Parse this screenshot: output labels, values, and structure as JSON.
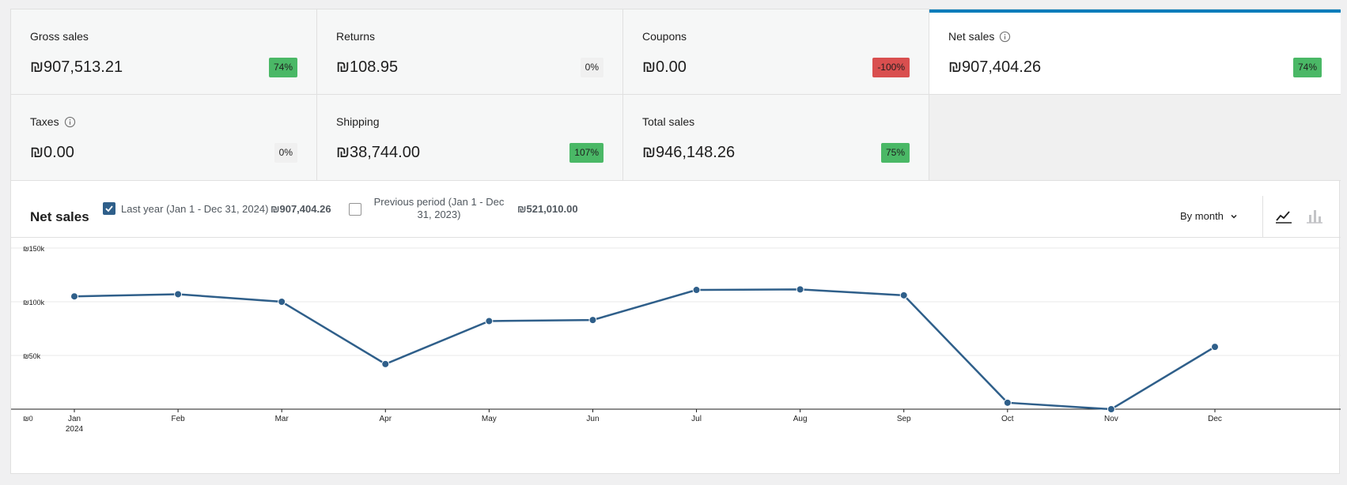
{
  "tiles": [
    {
      "label": "Gross sales",
      "value": "₪907,513.21",
      "change": "74%",
      "status": "green",
      "info": false,
      "active": false
    },
    {
      "label": "Returns",
      "value": "₪108.95",
      "change": "0%",
      "status": "neutral",
      "info": false,
      "active": false
    },
    {
      "label": "Coupons",
      "value": "₪0.00",
      "change": "-100%",
      "status": "red",
      "info": false,
      "active": false
    },
    {
      "label": "Net sales",
      "value": "₪907,404.26",
      "change": "74%",
      "status": "green",
      "info": true,
      "active": true
    },
    {
      "label": "Taxes",
      "value": "₪0.00",
      "change": "0%",
      "status": "neutral",
      "info": true,
      "active": false
    },
    {
      "label": "Shipping",
      "value": "₪38,744.00",
      "change": "107%",
      "status": "green",
      "info": false,
      "active": false
    },
    {
      "label": "Total sales",
      "value": "₪946,148.26",
      "change": "75%",
      "status": "green",
      "info": false,
      "active": false
    }
  ],
  "chart_header": {
    "title": "Net sales",
    "current_period": {
      "label": "Last year (Jan 1 - Dec 31, 2024)",
      "value": "₪907,404.26",
      "checked": true
    },
    "previous_period": {
      "label_line1": "Previous period (Jan 1 - Dec",
      "label_line2": "31, 2023)",
      "value": "₪521,010.00",
      "checked": false
    },
    "interval": "By month",
    "chart_type_icons": [
      "line-chart-icon",
      "bar-chart-icon"
    ]
  },
  "colors": {
    "accent": "#007cba",
    "series": "#2f5f8a",
    "positive": "#4ab866",
    "negative": "#d94f4f"
  },
  "chart_data": {
    "type": "line",
    "categories": [
      "Jan",
      "Feb",
      "Mar",
      "Apr",
      "May",
      "Jun",
      "Jul",
      "Aug",
      "Sep",
      "Oct",
      "Nov",
      "Dec"
    ],
    "year_label": "2024",
    "series": [
      {
        "values": [
          105000,
          107000,
          100000,
          42000,
          82000,
          83000,
          111000,
          111500,
          106000,
          6000,
          0,
          58000
        ]
      }
    ],
    "y_ticks": [
      "₪0",
      "₪50k",
      "₪100k",
      "₪150k"
    ],
    "y_tick_values": [
      0,
      50000,
      100000,
      150000
    ],
    "ylim": [
      0,
      150000
    ],
    "grid": true
  }
}
